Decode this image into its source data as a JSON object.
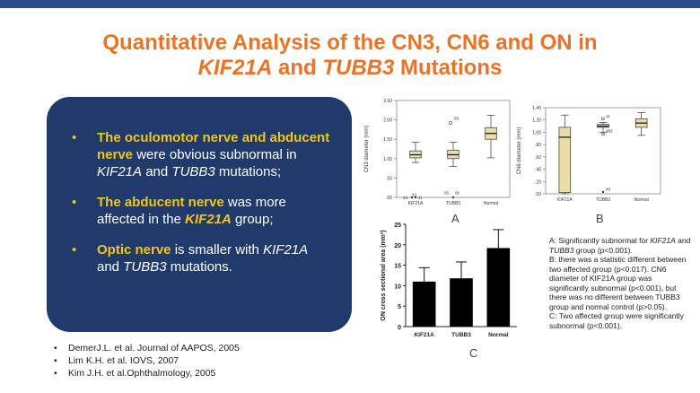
{
  "title_line1": "Quantitative Analysis of the CN3, CN6 and ON in",
  "title_gene1": "KIF21A",
  "title_and": "and",
  "title_gene2": "TUBB3",
  "title_end": "Mutations",
  "bullets": [
    {
      "hl": "The oculomotor nerve and abducent nerve",
      "t1": " were obvious subnormal  in ",
      "g1": "KIF21A",
      "t2": " and ",
      "g2": "TUBB3",
      "t3": " mutations;"
    },
    {
      "hl": "The abducent nerve",
      "t1": " was more affected in the ",
      "g1": "KIF21A",
      "t2": " group;"
    },
    {
      "hl": "Optic nerve",
      "t1": " is smaller with  ",
      "g1": "KIF21A",
      "t2": " and ",
      "g2": "TUBB3",
      "t3": " mutations."
    }
  ],
  "references": [
    "DemerJ.L. et al. Journal of AAPOS, 2005",
    "Lim K.H. et al. IOVS, 2007",
    "Kim J.H. et al.Ophthalmology, 2005"
  ],
  "panel_labels": {
    "a": "A",
    "b": "B",
    "c": "C"
  },
  "note": {
    "a_pre": "A: Significantly subnormal for ",
    "a_g1": "KIF21A",
    "a_mid": " and ",
    "a_g2": "TUBB3",
    "a_end": " group (p<0.001).",
    "b": "B: there was a statistic different between two affected group (p<0.017). CN6 diameter of KIF21A group was significantly subnormal (p<0.001), but there was no different between TUBB3 group and normal control (p>0.05).",
    "c": "C: Two affected group were significantly subnormal (p<0.001)."
  },
  "chart_data": [
    {
      "type": "box",
      "ylabel": "CN3 diameter (mm)",
      "categories": [
        "KIF21A",
        "TUBB3",
        "Normal"
      ],
      "yticks": [
        "2.50",
        "2.00",
        "1.50",
        "1.00",
        ".50",
        ".00"
      ],
      "ylim": [
        0,
        2.5
      ],
      "boxes": [
        {
          "min": 0.9,
          "q1": 1.02,
          "median": 1.1,
          "q3": 1.2,
          "max": 1.42
        },
        {
          "min": 0.8,
          "q1": 1.0,
          "median": 1.1,
          "q3": 1.22,
          "max": 1.42
        },
        {
          "min": 1.02,
          "q1": 1.5,
          "median": 1.65,
          "q3": 1.8,
          "max": 2.12
        }
      ],
      "outlier_labels": [
        "43",
        "44",
        "41",
        "65",
        "65",
        "66"
      ]
    },
    {
      "type": "box",
      "ylabel": "CN6 diameter (mm)",
      "categories": [
        "KIF21A",
        "TUBB3",
        "Normal"
      ],
      "yticks": [
        "1.40",
        "1.20",
        "1.00",
        ".80",
        ".60",
        ".40",
        ".20",
        ".00"
      ],
      "ylim": [
        0,
        1.4
      ],
      "boxes": [
        {
          "min": 0.0,
          "q1": 0.02,
          "median": 0.92,
          "q3": 1.08,
          "max": 1.28
        },
        {
          "min": 1.0,
          "q1": 1.08,
          "median": 1.1,
          "q3": 1.13,
          "max": 1.16
        },
        {
          "min": 0.95,
          "q1": 1.08,
          "median": 1.15,
          "q3": 1.22,
          "max": 1.32
        }
      ],
      "outlier_labels": [
        "11",
        "483",
        "48"
      ]
    },
    {
      "type": "bar",
      "ylabel": "ON cross sectional area (mm²)",
      "categories": [
        "KIF21A",
        "TUBB3",
        "Normal"
      ],
      "values": [
        11,
        11.8,
        19.2
      ],
      "errors": [
        3.4,
        4,
        4.5
      ],
      "yticks": [
        "0",
        "5",
        "10",
        "15",
        "20",
        "25"
      ],
      "ylim": [
        0,
        25
      ]
    }
  ]
}
